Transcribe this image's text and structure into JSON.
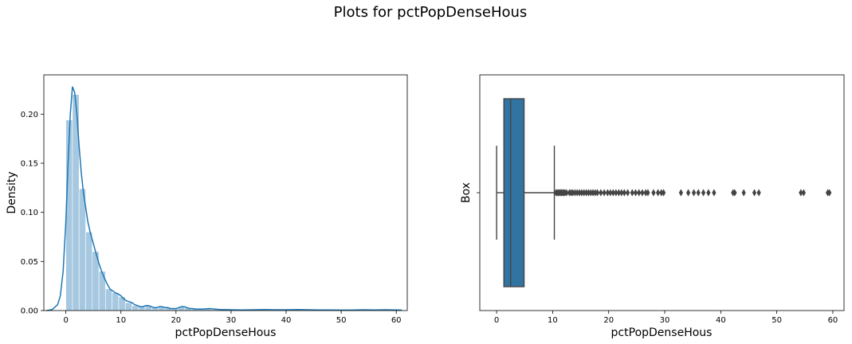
{
  "suptitle": "Plots for pctPopDenseHous",
  "chart_data": [
    {
      "type": "histogram",
      "overlay": "kde",
      "xlabel": "pctPopDenseHous",
      "ylabel": "Density",
      "xlim": [
        -4,
        62
      ],
      "ylim": [
        0,
        0.24
      ],
      "xticks": [
        0,
        10,
        20,
        30,
        40,
        50,
        60
      ],
      "yticks": [
        0.0,
        0.05,
        0.1,
        0.15,
        0.2
      ],
      "ytick_labels": [
        "0.00",
        "0.05",
        "0.10",
        "0.15",
        "0.20"
      ],
      "bar_color": "#a6c8e0",
      "line_color": "#1f77b4",
      "bins": [
        {
          "x0": 0.0,
          "x1": 1.2,
          "value": 0.194
        },
        {
          "x0": 1.2,
          "x1": 2.4,
          "value": 0.22
        },
        {
          "x0": 2.4,
          "x1": 3.6,
          "value": 0.124
        },
        {
          "x0": 3.6,
          "x1": 4.8,
          "value": 0.08
        },
        {
          "x0": 4.8,
          "x1": 6.0,
          "value": 0.06
        },
        {
          "x0": 6.0,
          "x1": 7.2,
          "value": 0.04
        },
        {
          "x0": 7.2,
          "x1": 8.4,
          "value": 0.022
        },
        {
          "x0": 8.4,
          "x1": 9.6,
          "value": 0.018
        },
        {
          "x0": 9.6,
          "x1": 10.8,
          "value": 0.014
        },
        {
          "x0": 10.8,
          "x1": 12.0,
          "value": 0.008
        },
        {
          "x0": 12.0,
          "x1": 13.2,
          "value": 0.005
        },
        {
          "x0": 13.2,
          "x1": 14.4,
          "value": 0.004
        },
        {
          "x0": 14.4,
          "x1": 15.6,
          "value": 0.005
        },
        {
          "x0": 15.6,
          "x1": 16.8,
          "value": 0.003
        },
        {
          "x0": 16.8,
          "x1": 18.0,
          "value": 0.004
        },
        {
          "x0": 18.0,
          "x1": 19.2,
          "value": 0.003
        },
        {
          "x0": 19.2,
          "x1": 20.4,
          "value": 0.002
        },
        {
          "x0": 20.4,
          "x1": 21.6,
          "value": 0.004
        },
        {
          "x0": 21.6,
          "x1": 22.8,
          "value": 0.003
        },
        {
          "x0": 22.8,
          "x1": 24.0,
          "value": 0.002
        },
        {
          "x0": 24.0,
          "x1": 25.2,
          "value": 0.0015
        },
        {
          "x0": 25.2,
          "x1": 26.4,
          "value": 0.002
        },
        {
          "x0": 26.4,
          "x1": 27.6,
          "value": 0.001
        },
        {
          "x0": 27.6,
          "x1": 28.8,
          "value": 0.001
        },
        {
          "x0": 28.8,
          "x1": 30.0,
          "value": 0.001
        },
        {
          "x0": 30.0,
          "x1": 31.2,
          "value": 0.0005
        },
        {
          "x0": 32.4,
          "x1": 33.6,
          "value": 0.0005
        },
        {
          "x0": 34.8,
          "x1": 36.0,
          "value": 0.001
        },
        {
          "x0": 37.2,
          "x1": 38.4,
          "value": 0.0005
        },
        {
          "x0": 38.4,
          "x1": 39.6,
          "value": 0.0005
        },
        {
          "x0": 42.0,
          "x1": 43.2,
          "value": 0.0008
        },
        {
          "x0": 44.4,
          "x1": 45.6,
          "value": 0.0005
        },
        {
          "x0": 46.8,
          "x1": 48.0,
          "value": 0.0005
        },
        {
          "x0": 54.0,
          "x1": 55.2,
          "value": 0.0008
        },
        {
          "x0": 58.8,
          "x1": 60.0,
          "value": 0.0008
        }
      ],
      "kde": {
        "x": [
          -3.5,
          -2.5,
          -1.5,
          -1.0,
          -0.5,
          0.0,
          0.4,
          0.8,
          1.2,
          1.6,
          2.0,
          2.4,
          2.8,
          3.2,
          3.6,
          4.0,
          4.5,
          5.0,
          5.5,
          6.0,
          6.5,
          7.0,
          7.5,
          8.0,
          8.5,
          9.0,
          9.5,
          10.0,
          10.5,
          11.0,
          11.5,
          12.0,
          12.5,
          13.0,
          13.5,
          14.0,
          14.5,
          15.0,
          15.5,
          16.0,
          16.5,
          17.0,
          17.5,
          18.0,
          18.5,
          19.0,
          19.5,
          20.0,
          20.5,
          21.0,
          21.5,
          22.0,
          22.5,
          23.0,
          23.5,
          24.0,
          25.0,
          26.0,
          27.0,
          28.0,
          29.0,
          30.0,
          32.0,
          34.0,
          36.0,
          38.0,
          40.0,
          42.0,
          44.0,
          46.0,
          48.0,
          50.0,
          52.0,
          54.0,
          56.0,
          58.0,
          60.0,
          61.0
        ],
        "y": [
          0.0,
          0.001,
          0.006,
          0.015,
          0.04,
          0.09,
          0.15,
          0.2,
          0.228,
          0.222,
          0.2,
          0.168,
          0.14,
          0.12,
          0.105,
          0.09,
          0.078,
          0.068,
          0.058,
          0.048,
          0.04,
          0.033,
          0.027,
          0.022,
          0.02,
          0.018,
          0.017,
          0.015,
          0.012,
          0.01,
          0.009,
          0.008,
          0.006,
          0.005,
          0.004,
          0.004,
          0.005,
          0.005,
          0.004,
          0.003,
          0.003,
          0.004,
          0.004,
          0.003,
          0.003,
          0.002,
          0.002,
          0.002,
          0.003,
          0.004,
          0.004,
          0.003,
          0.002,
          0.002,
          0.0015,
          0.0015,
          0.0015,
          0.002,
          0.0015,
          0.001,
          0.001,
          0.0008,
          0.0006,
          0.0008,
          0.001,
          0.0008,
          0.0008,
          0.001,
          0.0008,
          0.0006,
          0.0006,
          0.0005,
          0.0005,
          0.0008,
          0.0006,
          0.0008,
          0.0006,
          0.0005
        ]
      }
    },
    {
      "type": "box",
      "orientation": "horizontal",
      "xlabel": "pctPopDenseHous",
      "ylabel": "Box",
      "xlim": [
        -3,
        62
      ],
      "xticks": [
        0,
        10,
        20,
        30,
        40,
        50,
        60
      ],
      "box_color": "#3274a1",
      "edge_color": "#444444",
      "whisker_low": 0.0,
      "q1": 1.3,
      "median": 2.5,
      "q3": 4.9,
      "whisker_high": 10.3,
      "outliers": [
        10.6,
        10.8,
        11.0,
        11.2,
        11.4,
        11.6,
        11.8,
        12.0,
        12.2,
        12.5,
        13.0,
        13.3,
        13.6,
        14.0,
        14.4,
        14.8,
        15.2,
        15.6,
        16.0,
        16.4,
        16.8,
        17.2,
        17.6,
        18.0,
        18.6,
        19.2,
        19.8,
        20.3,
        20.8,
        21.3,
        21.8,
        22.3,
        22.8,
        23.4,
        24.2,
        24.8,
        25.4,
        26.0,
        26.6,
        27.0,
        28.0,
        28.8,
        29.4,
        29.8,
        32.9,
        34.2,
        35.2,
        36.0,
        36.9,
        37.8,
        38.8,
        42.2,
        42.5,
        44.1,
        46.0,
        46.8,
        54.3,
        54.8,
        59.1,
        59.4
      ]
    }
  ]
}
